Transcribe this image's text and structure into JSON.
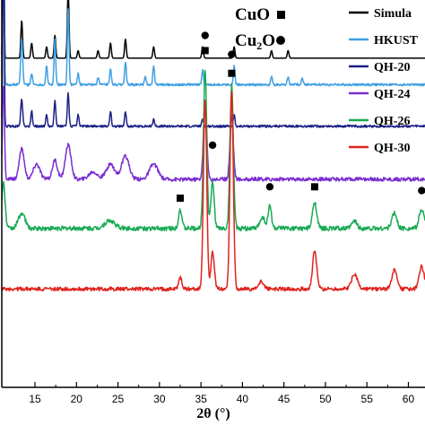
{
  "chart_data": {
    "type": "line",
    "xlabel": "2θ (°)",
    "ylabel": "",
    "xlim": [
      11,
      62
    ],
    "xticks": [
      15,
      20,
      25,
      30,
      35,
      40,
      45,
      50,
      55,
      60
    ],
    "x_tick_labels": [
      "15",
      "20",
      "25",
      "30",
      "35",
      "40",
      "45",
      "50",
      "55",
      "60"
    ],
    "grid": false,
    "legend_position": "top-right",
    "phase_legend": [
      {
        "label": "CuO",
        "symbol": "square"
      },
      {
        "label": "Cu",
        "subscript": "2",
        "suffix": "O",
        "symbol": "circle"
      }
    ],
    "series": [
      {
        "name": "Simula",
        "color": "#000000",
        "baseline": 0.87,
        "peaks": [
          [
            11.2,
            0.6,
            0.07
          ],
          [
            13.4,
            0.1,
            0.1
          ],
          [
            14.6,
            0.04,
            0.1
          ],
          [
            16.4,
            0.03,
            0.1
          ],
          [
            17.4,
            0.06,
            0.1
          ],
          [
            19.0,
            0.18,
            0.1
          ],
          [
            20.2,
            0.02,
            0.1
          ],
          [
            22.6,
            0.02,
            0.1
          ],
          [
            24.1,
            0.04,
            0.1
          ],
          [
            25.9,
            0.05,
            0.1
          ],
          [
            29.3,
            0.03,
            0.1
          ],
          [
            35.2,
            0.03,
            0.1
          ],
          [
            39.0,
            0.03,
            0.1
          ],
          [
            43.5,
            0.02,
            0.1
          ],
          [
            45.5,
            0.02,
            0.1
          ]
        ],
        "noise": 0.0
      },
      {
        "name": "HKUST",
        "color": "#3f9fe3",
        "baseline": 0.8,
        "peaks": [
          [
            11.2,
            0.65,
            0.08
          ],
          [
            13.4,
            0.12,
            0.12
          ],
          [
            14.6,
            0.03,
            0.1
          ],
          [
            16.4,
            0.05,
            0.1
          ],
          [
            17.4,
            0.12,
            0.1
          ],
          [
            19.0,
            0.2,
            0.1
          ],
          [
            20.2,
            0.03,
            0.1
          ],
          [
            22.6,
            0.02,
            0.1
          ],
          [
            24.1,
            0.04,
            0.1
          ],
          [
            25.9,
            0.06,
            0.1
          ],
          [
            28.3,
            0.02,
            0.1
          ],
          [
            29.3,
            0.05,
            0.1
          ],
          [
            35.2,
            0.04,
            0.1
          ],
          [
            39.0,
            0.05,
            0.1
          ],
          [
            43.5,
            0.02,
            0.1
          ],
          [
            45.5,
            0.02,
            0.1
          ],
          [
            47.2,
            0.02,
            0.1
          ]
        ],
        "noise": 0.003
      },
      {
        "name": "QH-20",
        "color": "#1c2085",
        "baseline": 0.69,
        "peaks": [
          [
            11.2,
            0.55,
            0.08
          ],
          [
            13.4,
            0.07,
            0.12
          ],
          [
            14.6,
            0.04,
            0.1
          ],
          [
            16.4,
            0.03,
            0.1
          ],
          [
            17.4,
            0.07,
            0.1
          ],
          [
            19.0,
            0.09,
            0.1
          ],
          [
            20.2,
            0.03,
            0.1
          ],
          [
            24.1,
            0.04,
            0.1
          ],
          [
            25.9,
            0.04,
            0.1
          ],
          [
            29.3,
            0.02,
            0.1
          ],
          [
            35.2,
            0.02,
            0.1
          ],
          [
            39.0,
            0.03,
            0.1
          ]
        ],
        "noise": 0.003
      },
      {
        "name": "QH-24",
        "color": "#7a2fd1",
        "baseline": 0.55,
        "peaks": [
          [
            11.2,
            0.25,
            0.12
          ],
          [
            13.4,
            0.08,
            0.3
          ],
          [
            15.2,
            0.04,
            0.4
          ],
          [
            17.4,
            0.05,
            0.3
          ],
          [
            19.0,
            0.09,
            0.35
          ],
          [
            22.0,
            0.02,
            0.5
          ],
          [
            24.1,
            0.04,
            0.5
          ],
          [
            25.9,
            0.06,
            0.45
          ],
          [
            29.3,
            0.04,
            0.5
          ],
          [
            35.5,
            0.2,
            0.2
          ],
          [
            38.7,
            0.17,
            0.2
          ]
        ],
        "noise": 0.005
      },
      {
        "name": "QH-26",
        "color": "#1aaa55",
        "baseline": 0.42,
        "peaks": [
          [
            11.2,
            0.12,
            0.2
          ],
          [
            13.4,
            0.04,
            0.4
          ],
          [
            24.0,
            0.02,
            0.6
          ],
          [
            32.5,
            0.05,
            0.2
          ],
          [
            35.5,
            0.42,
            0.2
          ],
          [
            36.4,
            0.12,
            0.2
          ],
          [
            38.7,
            0.38,
            0.2
          ],
          [
            42.4,
            0.03,
            0.3
          ],
          [
            43.3,
            0.06,
            0.2
          ],
          [
            48.7,
            0.07,
            0.25
          ],
          [
            53.5,
            0.02,
            0.3
          ],
          [
            58.3,
            0.04,
            0.3
          ],
          [
            61.6,
            0.05,
            0.3
          ]
        ],
        "noise": 0.006
      },
      {
        "name": "QH-30",
        "color": "#e0231c",
        "baseline": 0.26,
        "peaks": [
          [
            32.5,
            0.03,
            0.2
          ],
          [
            35.5,
            0.5,
            0.2
          ],
          [
            36.4,
            0.1,
            0.2
          ],
          [
            38.7,
            0.52,
            0.2
          ],
          [
            42.3,
            0.02,
            0.3
          ],
          [
            48.7,
            0.1,
            0.25
          ],
          [
            53.5,
            0.04,
            0.35
          ],
          [
            58.3,
            0.05,
            0.3
          ],
          [
            61.6,
            0.06,
            0.3
          ]
        ],
        "noise": 0.005
      }
    ],
    "markers": [
      {
        "phase": "CuO",
        "symbol": "square",
        "x": 32.5,
        "y": 0.5
      },
      {
        "phase": "CuO",
        "symbol": "square",
        "x": 35.5,
        "y": 0.89
      },
      {
        "phase": "CuO",
        "symbol": "square",
        "x": 38.7,
        "y": 0.83
      },
      {
        "phase": "CuO",
        "symbol": "square",
        "x": 48.7,
        "y": 0.53
      },
      {
        "phase": "Cu2O",
        "symbol": "circle",
        "x": 35.5,
        "y": 0.93
      },
      {
        "phase": "Cu2O",
        "symbol": "circle",
        "x": 38.7,
        "y": 0.88
      },
      {
        "phase": "Cu2O",
        "symbol": "circle",
        "x": 36.4,
        "y": 0.64
      },
      {
        "phase": "Cu2O",
        "symbol": "circle",
        "x": 43.3,
        "y": 0.53
      },
      {
        "phase": "Cu2O",
        "symbol": "circle",
        "x": 61.6,
        "y": 0.52
      }
    ]
  }
}
